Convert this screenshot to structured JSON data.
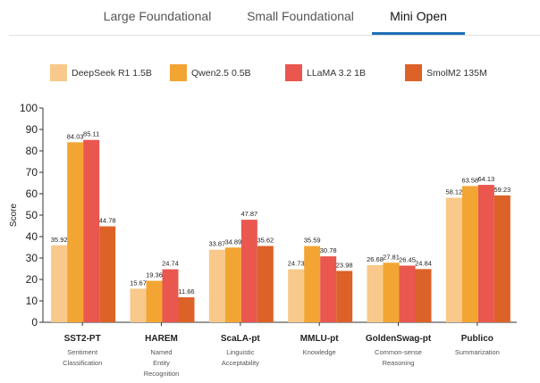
{
  "tabs": [
    {
      "label": "Large Foundational",
      "active": false
    },
    {
      "label": "Small Foundational",
      "active": false
    },
    {
      "label": "Mini Open",
      "active": true
    }
  ],
  "chart_data": {
    "type": "bar",
    "title": "",
    "xlabel": "",
    "ylabel": "Score",
    "ylim": [
      0,
      100
    ],
    "yticks": [
      0,
      10,
      20,
      30,
      40,
      50,
      60,
      70,
      80,
      90,
      100
    ],
    "legend_position": "top",
    "grid": false,
    "categories": [
      {
        "name": "SST2-PT",
        "sub": [
          "Sentiment",
          "Classification"
        ]
      },
      {
        "name": "HAREM",
        "sub": [
          "Named",
          "Entity",
          "Recognition"
        ]
      },
      {
        "name": "ScaLA-pt",
        "sub": [
          "Linguistic",
          "Acceptability"
        ]
      },
      {
        "name": "MMLU-pt",
        "sub": [
          "Knowledge"
        ]
      },
      {
        "name": "GoldenSwag-pt",
        "sub": [
          "Common-sense",
          "Reasoning"
        ]
      },
      {
        "name": "Publico",
        "sub": [
          "Summarization"
        ]
      }
    ],
    "series": [
      {
        "name": "DeepSeek R1 1.5B",
        "color": "#f8c98a",
        "values": [
          35.92,
          15.67,
          33.87,
          24.73,
          26.68,
          58.12
        ]
      },
      {
        "name": "Qwen2.5 0.5B",
        "color": "#f3a533",
        "values": [
          84.03,
          19.36,
          34.89,
          35.59,
          27.81,
          63.58
        ]
      },
      {
        "name": "LLaMA 3.2 1B",
        "color": "#e9574e",
        "values": [
          85.11,
          24.74,
          47.87,
          30.78,
          26.45,
          64.13
        ]
      },
      {
        "name": "SmolM2 135M",
        "color": "#dc6228",
        "values": [
          44.78,
          11.66,
          35.62,
          23.98,
          24.84,
          59.23
        ]
      }
    ]
  }
}
